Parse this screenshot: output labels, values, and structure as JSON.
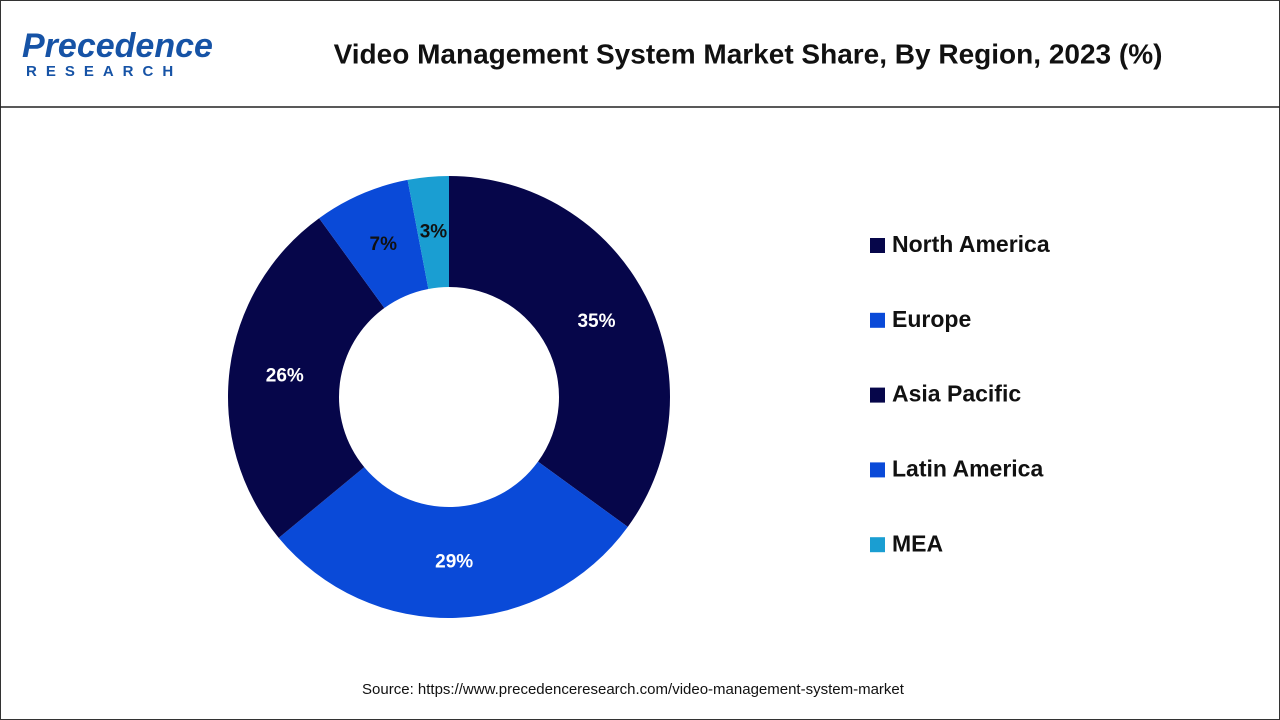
{
  "logo": {
    "name": "Precedence",
    "tagline": "RESEARCH"
  },
  "chart_data": {
    "type": "donut",
    "title": "Video Management System Market Share, By Region, 2023 (%)",
    "categories": [
      "North America",
      "Europe",
      "Asia Pacific",
      "Latin America",
      "MEA"
    ],
    "values": [
      35,
      29,
      26,
      7,
      3
    ],
    "value_labels": [
      "35%",
      "29%",
      "26%",
      "7%",
      "3%"
    ],
    "colors": [
      "#06064a",
      "#0a4ad8",
      "#06064a",
      "#0a4ad8",
      "#1a9ed2"
    ],
    "label_colors": [
      "#ffffff",
      "#ffffff",
      "#ffffff",
      "#111111",
      "#111111"
    ],
    "legend": "right",
    "source": "Source: https://www.precedenceresearch.com/video-management-system-market"
  }
}
